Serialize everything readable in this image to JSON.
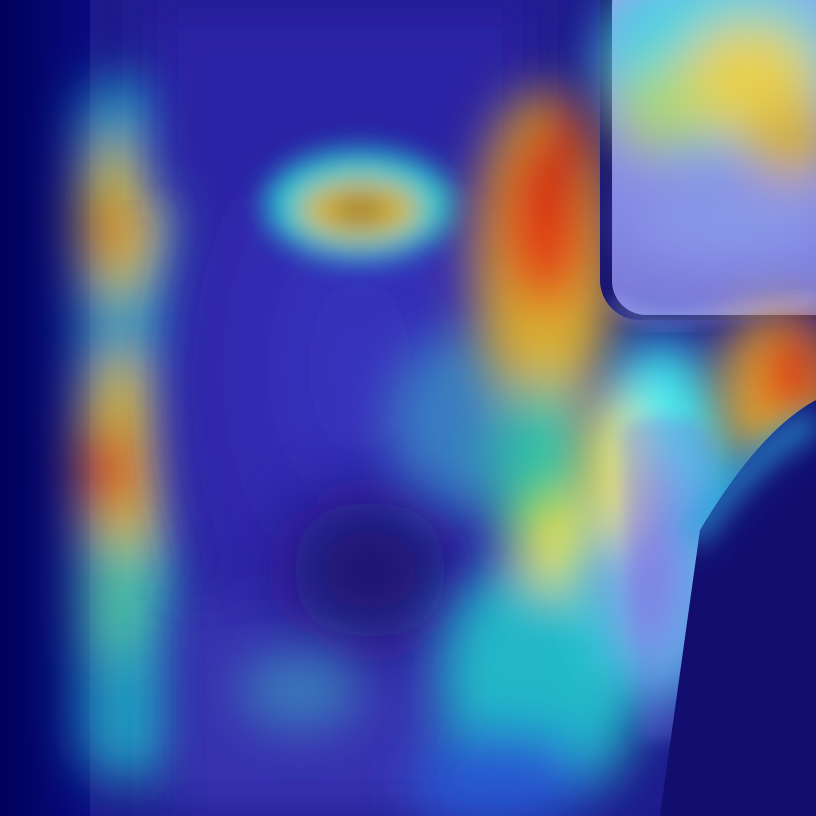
{
  "image": {
    "description_kind": "heatmap-overlay-photo",
    "colormap": [
      "#00007f",
      "#0000ff",
      "#00ffff",
      "#ffff00",
      "#ff0000"
    ],
    "base_tone": "#2a2aa8"
  }
}
